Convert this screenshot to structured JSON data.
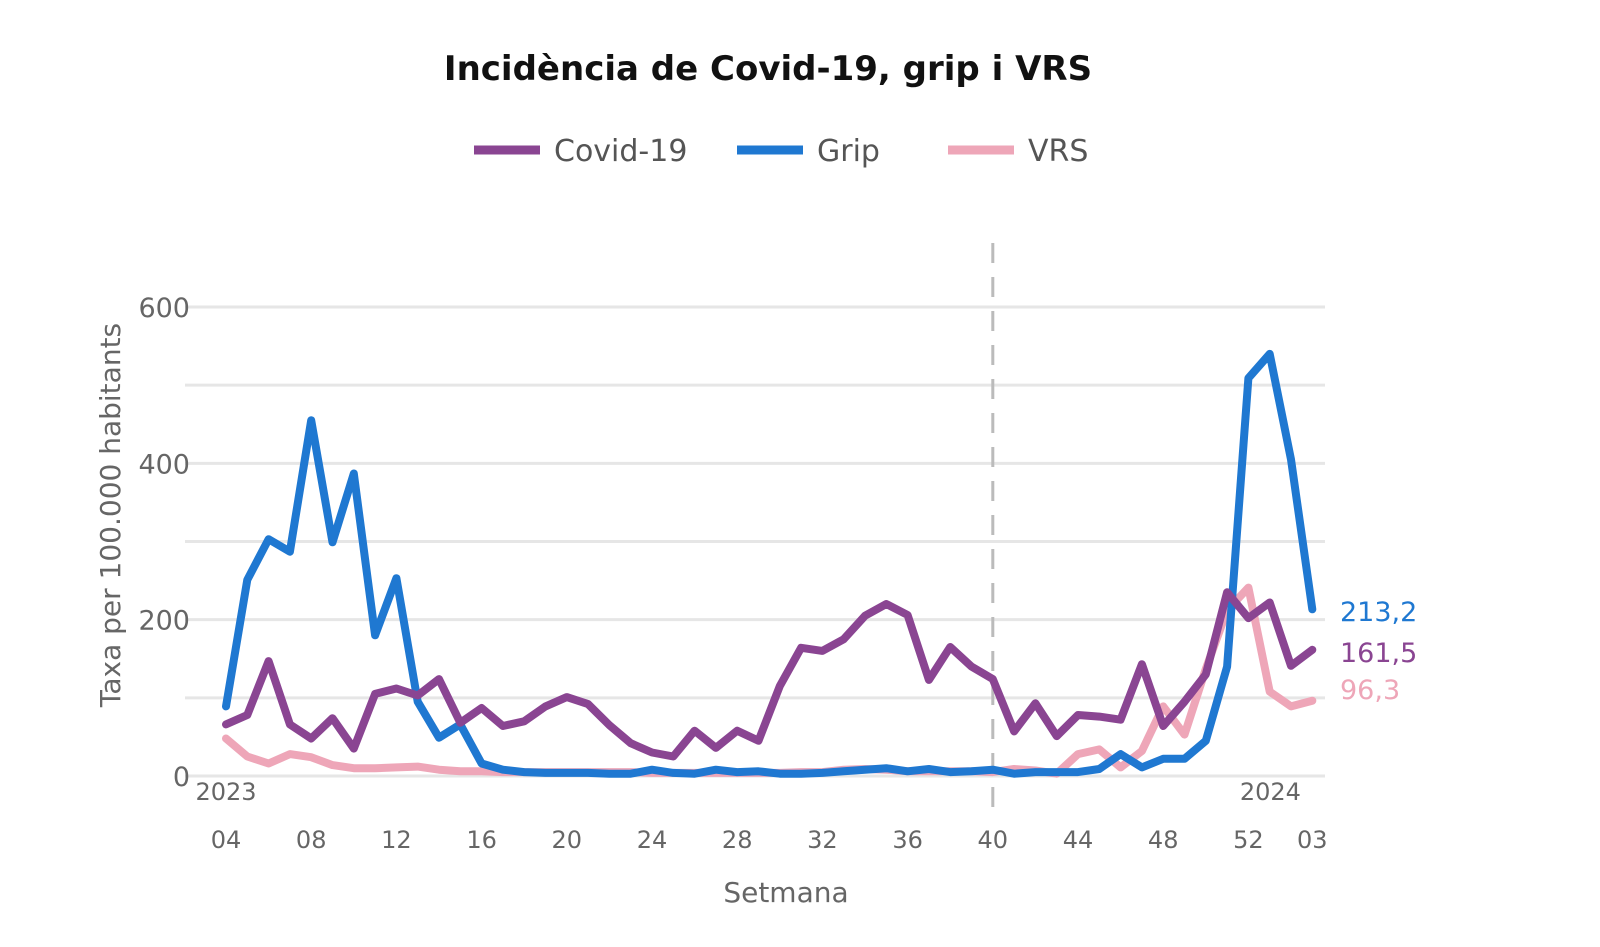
{
  "chart_data": {
    "type": "line",
    "title": "Incidència de Covid-19, grip i VRS",
    "xlabel": "Setmana",
    "ylabel": "Taxa per 100.000 habitants",
    "ylim": [
      0,
      600
    ],
    "yticks": [
      "0",
      "200",
      "400",
      "600"
    ],
    "grid": true,
    "legend_position": "top-center",
    "x": [
      "04",
      "05",
      "06",
      "07",
      "08",
      "09",
      "10",
      "11",
      "12",
      "13",
      "14",
      "15",
      "16",
      "17",
      "18",
      "19",
      "20",
      "21",
      "22",
      "23",
      "24",
      "25",
      "26",
      "27",
      "28",
      "29",
      "30",
      "31",
      "32",
      "33",
      "34",
      "35",
      "36",
      "37",
      "38",
      "39",
      "40",
      "41",
      "42",
      "43",
      "44",
      "45",
      "46",
      "47",
      "48",
      "49",
      "50",
      "51",
      "52",
      "01",
      "02",
      "03"
    ],
    "xtick_labels": [
      "04",
      "08",
      "12",
      "16",
      "20",
      "24",
      "28",
      "32",
      "36",
      "40",
      "44",
      "48",
      "52",
      "03"
    ],
    "year_labels": [
      "2023",
      "2024"
    ],
    "vertical_marker_week": "40",
    "series": [
      {
        "name": "Covid-19",
        "color": "#8a4592",
        "end_label": "161,5",
        "values": [
          66,
          78,
          147,
          66,
          48,
          74,
          35,
          105,
          112,
          103,
          124,
          68,
          87,
          64,
          70,
          89,
          101,
          92,
          65,
          42,
          30,
          25,
          58,
          36,
          58,
          45,
          115,
          164,
          160,
          175,
          205,
          220,
          206,
          123,
          165,
          140,
          124,
          57,
          93,
          51,
          78,
          76,
          72,
          143,
          64,
          95,
          130,
          235,
          202,
          222,
          141,
          161.5
        ]
      },
      {
        "name": "Grip",
        "color": "#1f78d1",
        "end_label": "213,2",
        "values": [
          89,
          251,
          303,
          287,
          455,
          299,
          387,
          180,
          253,
          95,
          49,
          66,
          16,
          8,
          5,
          4,
          4,
          4,
          3,
          3,
          8,
          4,
          3,
          8,
          5,
          6,
          3,
          3,
          4,
          6,
          8,
          10,
          6,
          9,
          5,
          6,
          8,
          3,
          5,
          5,
          5,
          9,
          28,
          11,
          22,
          22,
          45,
          140,
          509,
          540,
          405,
          213.2
        ]
      },
      {
        "name": "VRS",
        "color": "#eea6b8",
        "end_label": "96,3",
        "values": [
          48,
          25,
          16,
          28,
          24,
          14,
          10,
          10,
          11,
          12,
          8,
          6,
          6,
          5,
          5,
          5,
          5,
          5,
          5,
          5,
          4,
          4,
          4,
          4,
          4,
          4,
          4,
          5,
          5,
          8,
          9,
          8,
          6,
          6,
          6,
          6,
          5,
          9,
          7,
          3,
          28,
          34,
          11,
          32,
          89,
          53,
          137,
          212,
          241,
          108,
          89,
          96.3
        ]
      }
    ]
  }
}
